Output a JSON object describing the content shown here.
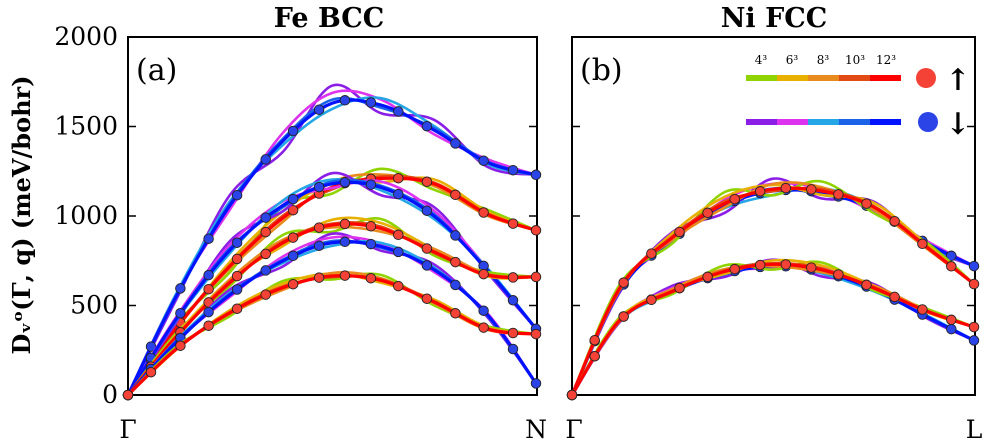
{
  "figure": {
    "ylabel": "Dᵥᵒ(Γ, q) (meV/bohr)",
    "ylim": [
      0,
      2000
    ],
    "yticks": [
      "0",
      "500",
      "1000",
      "1500",
      "2000"
    ]
  },
  "legend": {
    "grid_labels": [
      "4³",
      "6³",
      "8³",
      "10³",
      "12³"
    ],
    "spin_up": {
      "marker_color": "#f44336",
      "arrow": "↑",
      "colors": [
        "#8fd400",
        "#e8b000",
        "#e98a1c",
        "#e24c14",
        "#ff0000"
      ]
    },
    "spin_down": {
      "marker_color": "#2b44e8",
      "arrow": "↓",
      "colors": [
        "#8a1ee6",
        "#dd33ee",
        "#25a6e6",
        "#1a62e8",
        "#0012ff"
      ]
    }
  },
  "chart_data": [
    {
      "type": "line",
      "title": "Fe BCC",
      "panel_label": "(a)",
      "x_ticks": [
        "Γ",
        "N"
      ],
      "xlim": [
        0,
        1
      ],
      "ylim": [
        0,
        2000
      ],
      "series": [
        {
          "name": "spin-down branch 1",
          "spin": "down",
          "x": [
            0,
            0.12,
            0.25,
            0.38,
            0.5,
            0.62,
            0.75,
            0.88,
            1.0
          ],
          "y": [
            0,
            560,
            1060,
            1420,
            1630,
            1620,
            1480,
            1300,
            1230
          ]
        },
        {
          "name": "spin-up branch 2",
          "spin": "up",
          "x": [
            0,
            0.12,
            0.25,
            0.38,
            0.5,
            0.62,
            0.75,
            0.88,
            1.0
          ],
          "y": [
            0,
            380,
            720,
            990,
            1160,
            1210,
            1180,
            1010,
            920
          ]
        },
        {
          "name": "spin-down branch 3",
          "spin": "down",
          "x": [
            0,
            0.12,
            0.25,
            0.38,
            0.5,
            0.62,
            0.75,
            0.88,
            1.0
          ],
          "y": [
            0,
            430,
            810,
            1060,
            1180,
            1160,
            1000,
            700,
            370
          ]
        },
        {
          "name": "spin-up branch 4",
          "spin": "up",
          "x": [
            0,
            0.12,
            0.25,
            0.38,
            0.5,
            0.62,
            0.75,
            0.88,
            1.0
          ],
          "y": [
            0,
            330,
            630,
            850,
            950,
            930,
            800,
            670,
            660
          ]
        },
        {
          "name": "spin-down branch 5",
          "spin": "down",
          "x": [
            0,
            0.12,
            0.25,
            0.38,
            0.5,
            0.62,
            0.75,
            0.88,
            1.0
          ],
          "y": [
            0,
            300,
            560,
            750,
            850,
            830,
            700,
            450,
            65
          ]
        },
        {
          "name": "spin-up branch 6",
          "spin": "up",
          "x": [
            0,
            0.12,
            0.25,
            0.38,
            0.5,
            0.62,
            0.75,
            0.88,
            1.0
          ],
          "y": [
            0,
            260,
            460,
            600,
            665,
            640,
            520,
            370,
            340
          ]
        }
      ]
    },
    {
      "type": "line",
      "title": "Ni FCC",
      "panel_label": "(b)",
      "x_ticks": [
        "Γ",
        "L"
      ],
      "xlim": [
        0,
        1
      ],
      "ylim": [
        0,
        2000
      ],
      "series": [
        {
          "name": "spin-down branch 1",
          "spin": "down",
          "x": [
            0,
            0.12,
            0.25,
            0.38,
            0.5,
            0.62,
            0.75,
            0.88,
            1.0
          ],
          "y": [
            0,
            590,
            870,
            1060,
            1140,
            1130,
            1040,
            850,
            720
          ]
        },
        {
          "name": "spin-up branch 2",
          "spin": "up",
          "x": [
            0,
            0.12,
            0.25,
            0.38,
            0.5,
            0.62,
            0.75,
            0.88,
            1.0
          ],
          "y": [
            0,
            600,
            880,
            1070,
            1150,
            1140,
            1050,
            830,
            620
          ]
        },
        {
          "name": "spin-down branch 3",
          "spin": "down",
          "x": [
            0,
            0.12,
            0.25,
            0.38,
            0.5,
            0.62,
            0.75,
            0.88,
            1.0
          ],
          "y": [
            0,
            420,
            580,
            680,
            720,
            690,
            590,
            440,
            305
          ]
        },
        {
          "name": "spin-up branch 4",
          "spin": "up",
          "x": [
            0,
            0.12,
            0.25,
            0.38,
            0.5,
            0.62,
            0.75,
            0.88,
            1.0
          ],
          "y": [
            0,
            420,
            580,
            690,
            730,
            700,
            600,
            470,
            380
          ]
        }
      ]
    }
  ]
}
